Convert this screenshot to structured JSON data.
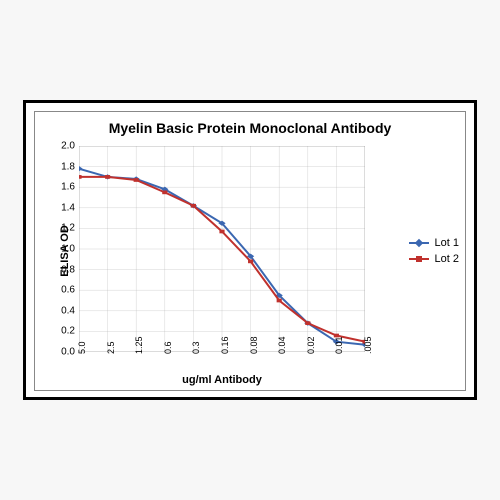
{
  "chart": {
    "type": "line",
    "title": "Myelin Basic Protein Monoclonal  Antibody",
    "xlabel": "ug/ml Antibody",
    "ylabel": "ELISA OD",
    "ylim": [
      0,
      2.0
    ],
    "ytick_step": 0.2,
    "yticks": [
      "0.0",
      "0.2",
      "0.4",
      "0.6",
      "0.8",
      "1.0",
      "1.2",
      "1.4",
      "1.6",
      "1.8",
      "2.0"
    ],
    "xticks": [
      "5.0",
      "2.5",
      "1.25",
      "0.6",
      "0.3",
      "0.16",
      "0.08",
      "0.04",
      "0.02",
      "0.01",
      ".005"
    ],
    "grid_color": "#b7b7b7",
    "background_color": "#ffffff",
    "series": [
      {
        "name": "Lot 1",
        "color": "#3b67b1",
        "marker": "diamond",
        "values": [
          1.78,
          1.7,
          1.68,
          1.58,
          1.42,
          1.25,
          0.93,
          0.55,
          0.28,
          0.1,
          0.07
        ]
      },
      {
        "name": "Lot 2",
        "color": "#c0312d",
        "marker": "square",
        "values": [
          1.7,
          1.7,
          1.67,
          1.55,
          1.42,
          1.17,
          0.88,
          0.5,
          0.28,
          0.16,
          0.1
        ]
      }
    ],
    "label_fontsize": 11,
    "title_fontsize": 14,
    "line_width": 2,
    "marker_size": 6
  }
}
